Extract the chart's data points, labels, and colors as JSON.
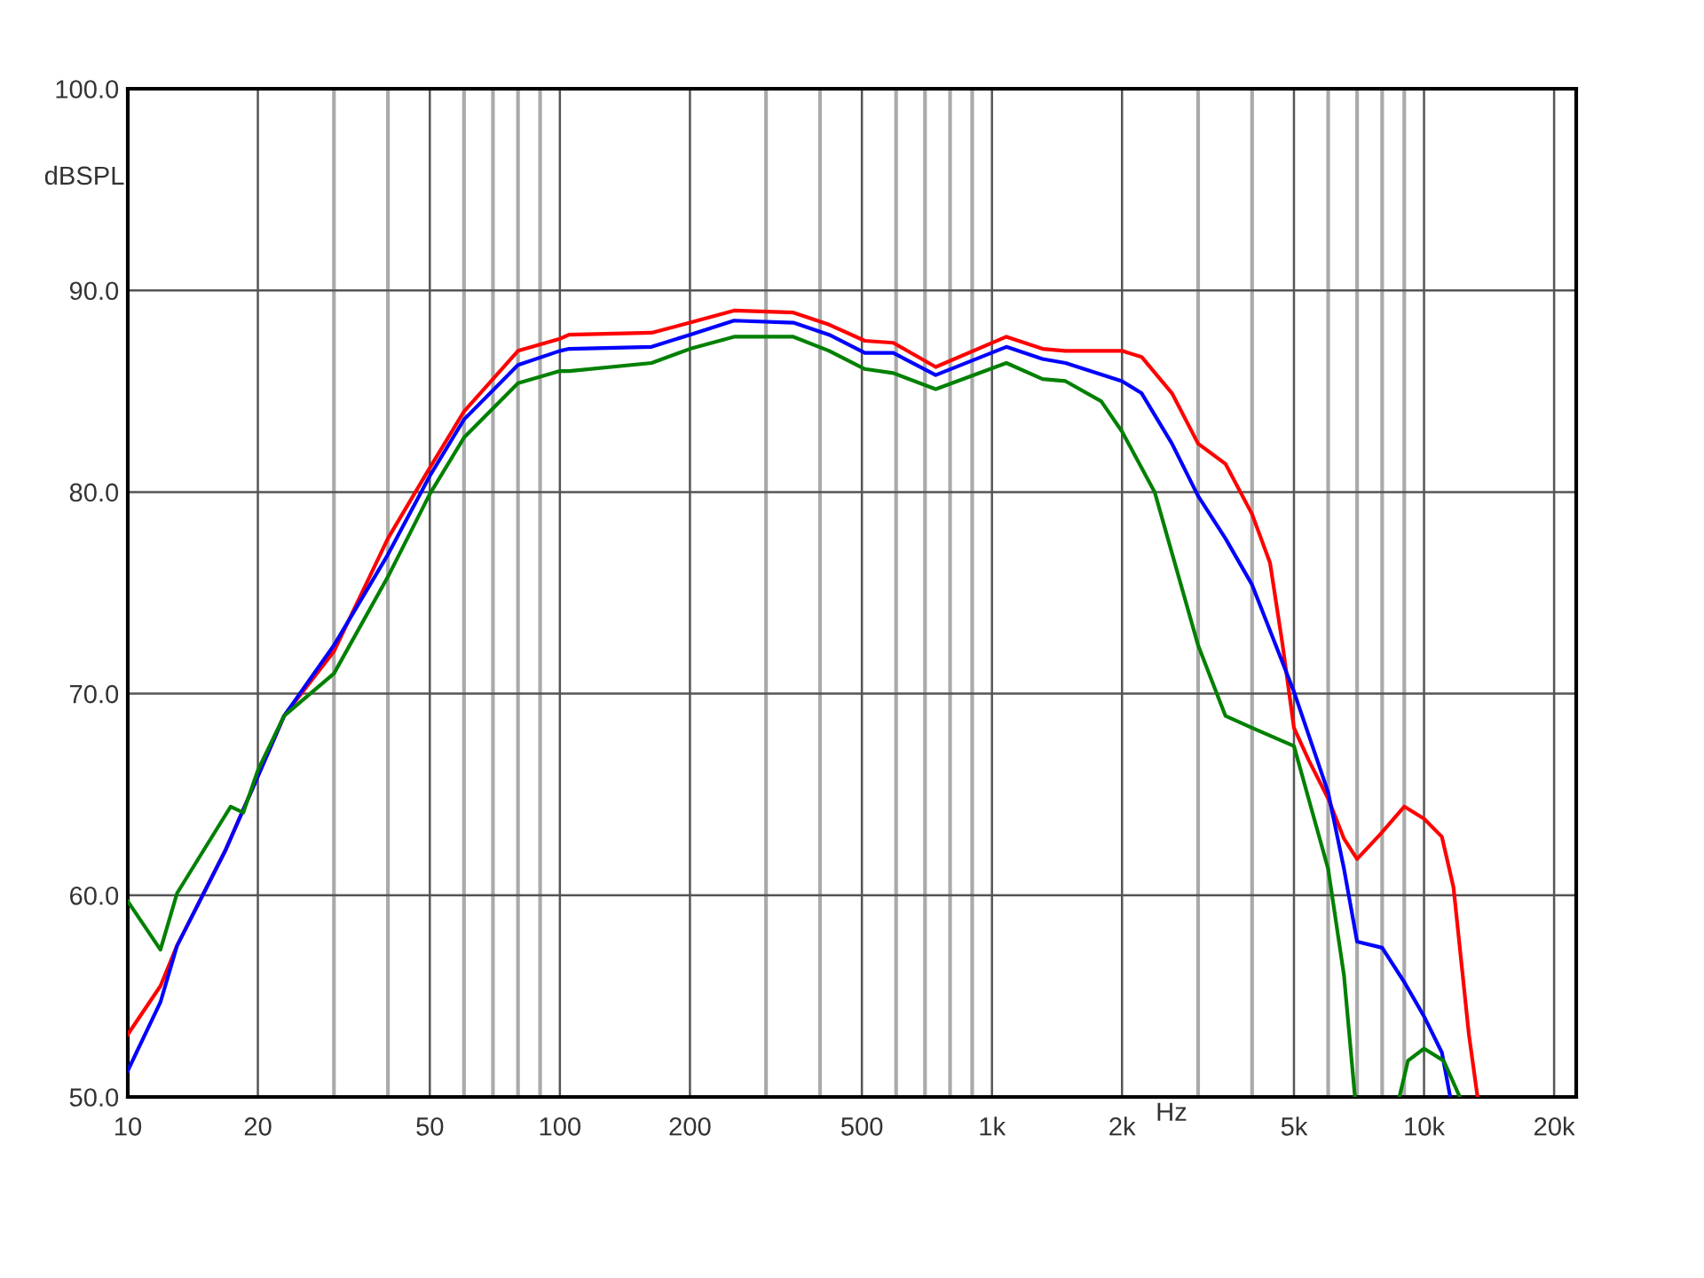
{
  "chart_data": {
    "type": "line",
    "xlabel": "Hz",
    "ylabel": "dBSPL",
    "log": "x",
    "grid": true,
    "marker": "none",
    "line_style": "solid",
    "xlim": [
      10,
      22500
    ],
    "ylim": [
      50,
      100
    ],
    "xticks": [
      {
        "value": 10,
        "label": "10"
      },
      {
        "value": 20,
        "label": "20"
      },
      {
        "value": 30,
        "label": null
      },
      {
        "value": 40,
        "label": null
      },
      {
        "value": 50,
        "label": "50"
      },
      {
        "value": 60,
        "label": null
      },
      {
        "value": 70,
        "label": null
      },
      {
        "value": 80,
        "label": null
      },
      {
        "value": 90,
        "label": null
      },
      {
        "value": 100,
        "label": "100"
      },
      {
        "value": 200,
        "label": "200"
      },
      {
        "value": 300,
        "label": null
      },
      {
        "value": 400,
        "label": null
      },
      {
        "value": 500,
        "label": "500"
      },
      {
        "value": 600,
        "label": null
      },
      {
        "value": 700,
        "label": null
      },
      {
        "value": 800,
        "label": null
      },
      {
        "value": 900,
        "label": null
      },
      {
        "value": 1000,
        "label": "1k"
      },
      {
        "value": 2000,
        "label": "2k"
      },
      {
        "value": 3000,
        "label": null
      },
      {
        "value": 4000,
        "label": null
      },
      {
        "value": 5000,
        "label": "5k"
      },
      {
        "value": 6000,
        "label": null
      },
      {
        "value": 7000,
        "label": null
      },
      {
        "value": 8000,
        "label": null
      },
      {
        "value": 9000,
        "label": null
      },
      {
        "value": 10000,
        "label": "10k"
      },
      {
        "value": 20000,
        "label": "20k"
      }
    ],
    "yticks": [
      {
        "value": 50,
        "label": "50.0"
      },
      {
        "value": 60,
        "label": "60.0"
      },
      {
        "value": 70,
        "label": "70.0"
      },
      {
        "value": 80,
        "label": "80.0"
      },
      {
        "value": 90,
        "label": "90.0"
      },
      {
        "value": 100,
        "label": "100.0"
      }
    ],
    "series": [
      {
        "color": "#ff0000",
        "x": [
          10,
          11.9,
          13,
          16.8,
          20,
          23,
          30,
          40,
          50,
          60,
          80,
          100,
          105,
          163,
          200,
          253,
          347,
          420,
          508,
          591,
          741,
          1080,
          1310,
          1480,
          2000,
          2220,
          2610,
          3000,
          3470,
          4000,
          4400,
          4700,
          5000,
          5410,
          6000,
          6530,
          7000,
          7900,
          9000,
          10000,
          11000,
          11700,
          12700,
          13300
        ],
        "values": [
          53.1,
          55.5,
          57.5,
          62.2,
          65.9,
          68.9,
          72.1,
          77.7,
          81.2,
          84.0,
          87.0,
          87.6,
          87.8,
          87.9,
          88.4,
          89.0,
          88.9,
          88.3,
          87.5,
          87.4,
          86.2,
          87.7,
          87.1,
          87.0,
          87.0,
          86.7,
          84.9,
          82.4,
          81.4,
          78.9,
          76.5,
          72.5,
          68.3,
          66.7,
          64.8,
          62.8,
          61.8,
          63.0,
          64.4,
          63.8,
          62.9,
          60.4,
          53.1,
          50
        ]
      },
      {
        "color": "#0000ff",
        "x": [
          10,
          11.9,
          13,
          16.8,
          20,
          23,
          30,
          40,
          50,
          60,
          80,
          100,
          105,
          163,
          200,
          253,
          347,
          420,
          508,
          591,
          741,
          1080,
          1310,
          1480,
          2000,
          2220,
          2610,
          3000,
          3470,
          4000,
          5000,
          6000,
          6530,
          7000,
          8000,
          9000,
          10000,
          11000,
          11500
        ],
        "values": [
          51.3,
          54.7,
          57.5,
          62.2,
          65.9,
          68.9,
          72.4,
          76.9,
          80.8,
          83.6,
          86.3,
          87.0,
          87.1,
          87.2,
          87.8,
          88.5,
          88.4,
          87.8,
          86.9,
          86.9,
          85.8,
          87.2,
          86.6,
          86.4,
          85.5,
          84.9,
          82.4,
          79.8,
          77.7,
          75.4,
          70.1,
          65.1,
          61.3,
          57.7,
          57.4,
          55.7,
          54.0,
          52.2,
          50
        ]
      },
      {
        "color": "#008000",
        "x": [
          10,
          11.9,
          13,
          17.3,
          18.5,
          20,
          23,
          30,
          40,
          50,
          60,
          80,
          100,
          105,
          163,
          200,
          253,
          347,
          420,
          508,
          591,
          741,
          1080,
          1310,
          1480,
          1790,
          2000,
          2380,
          3000,
          3470,
          4000,
          5000,
          6000,
          6530,
          6920,
          7800,
          8770,
          9180,
          10000,
          11100,
          12100
        ],
        "values": [
          59.7,
          57.3,
          60.1,
          64.4,
          64.1,
          66.2,
          68.9,
          71.0,
          75.8,
          79.9,
          82.7,
          85.4,
          86.0,
          86.0,
          86.4,
          87.1,
          87.7,
          87.7,
          87.0,
          86.1,
          85.9,
          85.1,
          86.4,
          85.6,
          85.5,
          84.5,
          83.0,
          80.0,
          72.4,
          68.9,
          68.3,
          67.4,
          61.3,
          56.0,
          50,
          null,
          50,
          51.8,
          52.4,
          51.8,
          50
        ]
      }
    ]
  }
}
